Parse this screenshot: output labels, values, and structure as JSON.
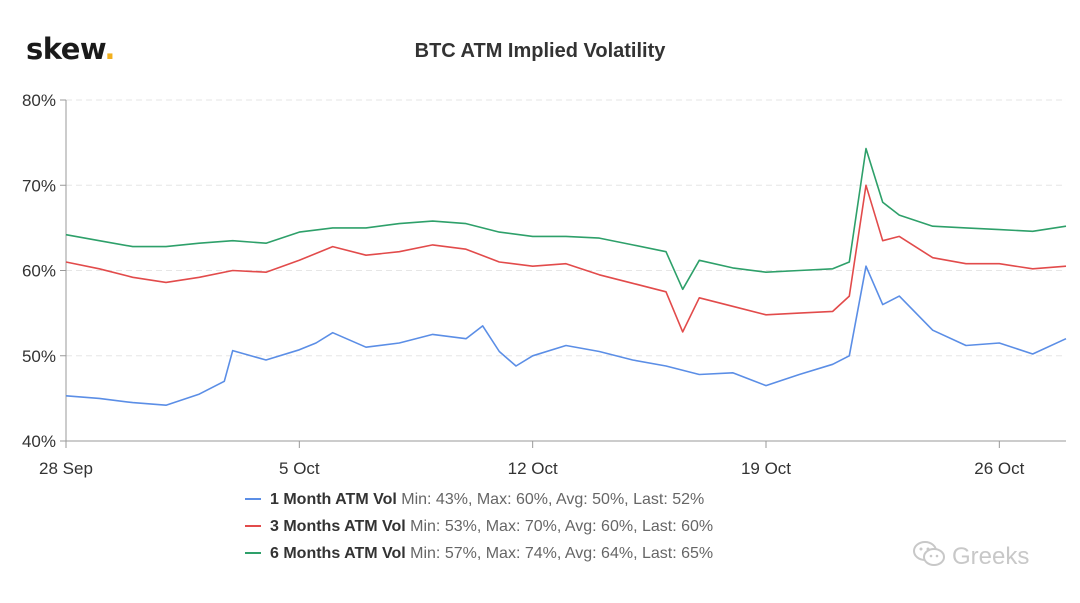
{
  "logo": {
    "text": "skew",
    "dot": "."
  },
  "watermark": {
    "text": "Greeks",
    "icon": "wechat-icon"
  },
  "colors": {
    "one_month": "#5b8ee6",
    "three_months": "#e24b4b",
    "six_months": "#2ea06a",
    "grid": "#e6e6e6",
    "axis": "#666666",
    "logo_dot": "#f2b01e"
  },
  "chart_data": {
    "type": "line",
    "title": "BTC ATM Implied Volatility",
    "xlabel": "",
    "ylabel": "",
    "ylim": [
      40,
      80
    ],
    "xlim": [
      "2020-09-28",
      "2020-10-28"
    ],
    "yticks": [
      40,
      50,
      60,
      70,
      80
    ],
    "ytick_labels": [
      "40%",
      "50%",
      "60%",
      "70%",
      "80%"
    ],
    "xticks": [
      "2020-09-28",
      "2020-10-05",
      "2020-10-12",
      "2020-10-19",
      "2020-10-26"
    ],
    "xtick_labels": [
      "28 Sep",
      "5 Oct",
      "12 Oct",
      "19 Oct",
      "26 Oct"
    ],
    "grid": true,
    "legend": "bottom",
    "series": [
      {
        "name": "1 Month ATM Vol",
        "stats": "Min: 43%, Max: 60%, Avg: 50%, Last: 52%",
        "color": "#5b8ee6",
        "points": [
          [
            "2020-09-28",
            45.3
          ],
          [
            "2020-09-29",
            45.0
          ],
          [
            "2020-09-30",
            44.5
          ],
          [
            "2020-10-01",
            44.2
          ],
          [
            "2020-10-02",
            45.5
          ],
          [
            "2020-10-02 18:00",
            47.0
          ],
          [
            "2020-10-03",
            50.6
          ],
          [
            "2020-10-04",
            49.5
          ],
          [
            "2020-10-05",
            50.7
          ],
          [
            "2020-10-05 12:00",
            51.5
          ],
          [
            "2020-10-06",
            52.7
          ],
          [
            "2020-10-07",
            51.0
          ],
          [
            "2020-10-08",
            51.5
          ],
          [
            "2020-10-09",
            52.5
          ],
          [
            "2020-10-10",
            52.0
          ],
          [
            "2020-10-10 12:00",
            53.5
          ],
          [
            "2020-10-11",
            50.5
          ],
          [
            "2020-10-11 12:00",
            48.8
          ],
          [
            "2020-10-12",
            50.0
          ],
          [
            "2020-10-13",
            51.2
          ],
          [
            "2020-10-14",
            50.5
          ],
          [
            "2020-10-15",
            49.5
          ],
          [
            "2020-10-16",
            48.8
          ],
          [
            "2020-10-17",
            47.8
          ],
          [
            "2020-10-18",
            48.0
          ],
          [
            "2020-10-19",
            46.5
          ],
          [
            "2020-10-20",
            47.8
          ],
          [
            "2020-10-21",
            49.0
          ],
          [
            "2020-10-21 12:00",
            50.0
          ],
          [
            "2020-10-22",
            60.5
          ],
          [
            "2020-10-22 12:00",
            56.0
          ],
          [
            "2020-10-23",
            57.0
          ],
          [
            "2020-10-24",
            53.0
          ],
          [
            "2020-10-25",
            51.2
          ],
          [
            "2020-10-26",
            51.5
          ],
          [
            "2020-10-27",
            50.2
          ],
          [
            "2020-10-28",
            52.0
          ]
        ]
      },
      {
        "name": "3 Months ATM Vol",
        "stats": "Min: 53%, Max: 70%, Avg: 60%, Last: 60%",
        "color": "#e24b4b",
        "points": [
          [
            "2020-09-28",
            61.0
          ],
          [
            "2020-09-29",
            60.2
          ],
          [
            "2020-09-30",
            59.2
          ],
          [
            "2020-10-01",
            58.6
          ],
          [
            "2020-10-02",
            59.2
          ],
          [
            "2020-10-03",
            60.0
          ],
          [
            "2020-10-04",
            59.8
          ],
          [
            "2020-10-05",
            61.2
          ],
          [
            "2020-10-06",
            62.8
          ],
          [
            "2020-10-07",
            61.8
          ],
          [
            "2020-10-08",
            62.2
          ],
          [
            "2020-10-09",
            63.0
          ],
          [
            "2020-10-10",
            62.5
          ],
          [
            "2020-10-11",
            61.0
          ],
          [
            "2020-10-12",
            60.5
          ],
          [
            "2020-10-13",
            60.8
          ],
          [
            "2020-10-14",
            59.5
          ],
          [
            "2020-10-15",
            58.5
          ],
          [
            "2020-10-16",
            57.5
          ],
          [
            "2020-10-16 12:00",
            52.8
          ],
          [
            "2020-10-17",
            56.8
          ],
          [
            "2020-10-18",
            55.8
          ],
          [
            "2020-10-19",
            54.8
          ],
          [
            "2020-10-20",
            55.0
          ],
          [
            "2020-10-21",
            55.2
          ],
          [
            "2020-10-21 12:00",
            57.0
          ],
          [
            "2020-10-22",
            70.0
          ],
          [
            "2020-10-22 12:00",
            63.5
          ],
          [
            "2020-10-23",
            64.0
          ],
          [
            "2020-10-24",
            61.5
          ],
          [
            "2020-10-25",
            60.8
          ],
          [
            "2020-10-26",
            60.8
          ],
          [
            "2020-10-27",
            60.2
          ],
          [
            "2020-10-28",
            60.5
          ]
        ]
      },
      {
        "name": "6 Months ATM Vol",
        "stats": "Min: 57%, Max: 74%, Avg: 64%, Last: 65%",
        "color": "#2ea06a",
        "points": [
          [
            "2020-09-28",
            64.2
          ],
          [
            "2020-09-29",
            63.5
          ],
          [
            "2020-09-30",
            62.8
          ],
          [
            "2020-10-01",
            62.8
          ],
          [
            "2020-10-02",
            63.2
          ],
          [
            "2020-10-03",
            63.5
          ],
          [
            "2020-10-04",
            63.2
          ],
          [
            "2020-10-05",
            64.5
          ],
          [
            "2020-10-06",
            65.0
          ],
          [
            "2020-10-07",
            65.0
          ],
          [
            "2020-10-08",
            65.5
          ],
          [
            "2020-10-09",
            65.8
          ],
          [
            "2020-10-10",
            65.5
          ],
          [
            "2020-10-11",
            64.5
          ],
          [
            "2020-10-12",
            64.0
          ],
          [
            "2020-10-13",
            64.0
          ],
          [
            "2020-10-14",
            63.8
          ],
          [
            "2020-10-15",
            63.0
          ],
          [
            "2020-10-16",
            62.2
          ],
          [
            "2020-10-16 12:00",
            57.8
          ],
          [
            "2020-10-17",
            61.2
          ],
          [
            "2020-10-18",
            60.3
          ],
          [
            "2020-10-19",
            59.8
          ],
          [
            "2020-10-20",
            60.0
          ],
          [
            "2020-10-21",
            60.2
          ],
          [
            "2020-10-21 12:00",
            61.0
          ],
          [
            "2020-10-22",
            74.3
          ],
          [
            "2020-10-22 12:00",
            68.0
          ],
          [
            "2020-10-23",
            66.5
          ],
          [
            "2020-10-24",
            65.2
          ],
          [
            "2020-10-25",
            65.0
          ],
          [
            "2020-10-26",
            64.8
          ],
          [
            "2020-10-27",
            64.6
          ],
          [
            "2020-10-28",
            65.2
          ]
        ]
      }
    ]
  }
}
